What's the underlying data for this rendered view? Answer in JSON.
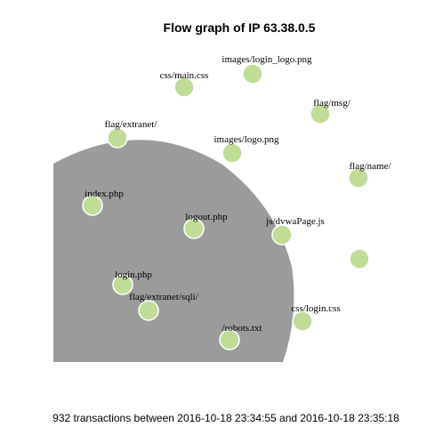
{
  "title": "Flow graph of IP 63.38.0.5",
  "caption": "932 transactions between 2016-10-18 23:34:55 and 2016-10-18 23:35:18",
  "colors": {
    "background": "#ffffff",
    "blob": "#9b9b9b",
    "node": "#bfdd97",
    "node_stroke": "#ffffff"
  },
  "nodes": [
    {
      "id": "images-login-logo",
      "label": "images/login_logo.png"
    },
    {
      "id": "css-main",
      "label": "css/main.css"
    },
    {
      "id": "flag-msg",
      "label": "flag/msg/"
    },
    {
      "id": "flag-extranet",
      "label": "flag/extranet/"
    },
    {
      "id": "images-logo",
      "label": "images/logo.png"
    },
    {
      "id": "flag-name",
      "label": "flag/name/"
    },
    {
      "id": "index-php",
      "label": "index.php"
    },
    {
      "id": "logout-php",
      "label": "logout.php"
    },
    {
      "id": "js-dvwapage",
      "label": "js/dvwaPage.js"
    },
    {
      "id": "unlabeled",
      "label": ""
    },
    {
      "id": "login-php",
      "label": "login.php"
    },
    {
      "id": "flag-extranet-sqli",
      "label": "flag/extranet/sqli/"
    },
    {
      "id": "css-login",
      "label": "css/login.css"
    },
    {
      "id": "robots-txt",
      "label": "/robots.txt"
    }
  ]
}
